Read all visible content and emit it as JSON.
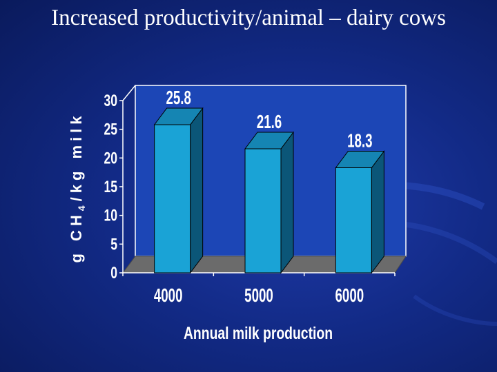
{
  "slide": {
    "title": "Increased productivity/animal – dairy cows"
  },
  "chart_data": {
    "type": "bar",
    "categories": [
      "4000",
      "5000",
      "6000"
    ],
    "values": [
      25.8,
      21.6,
      18.3
    ],
    "data_labels": [
      "25.8",
      "21.6",
      "18.3"
    ],
    "xlabel": "Annual milk production",
    "ylabel": {
      "prefix": "g CH",
      "subscript": "4",
      "suffix": "/kg milk"
    },
    "ylim": [
      0,
      30
    ],
    "yticks": [
      "0",
      "5",
      "10",
      "15",
      "20",
      "25",
      "30"
    ],
    "grid": false,
    "legend": "none",
    "three_d": true,
    "colors": {
      "bar_front": "#1aa3d6",
      "bar_top": "#1585b3",
      "bar_side": "#0b5678",
      "floor": "#6b6b6b",
      "text": "#ffffff"
    }
  }
}
